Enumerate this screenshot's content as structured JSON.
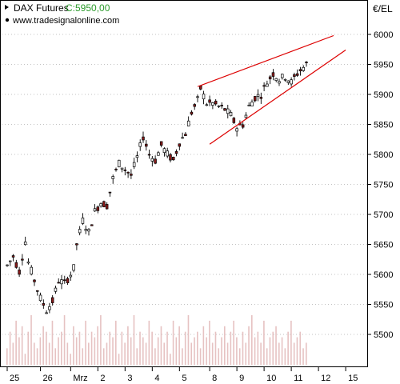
{
  "header": {
    "instrument": "DAX Futures",
    "last_label": "C:5950,00",
    "source": "www.tradesignalonline.com",
    "currency": "€/EL"
  },
  "chart_data": {
    "type": "candlestick",
    "title": "DAX Futures",
    "ylabel": "€/EL",
    "ylim": [
      5460,
      6020
    ],
    "y_ticks": [
      5500,
      5550,
      5600,
      5650,
      5700,
      5750,
      5800,
      5850,
      5900,
      5950,
      6000
    ],
    "x_tick_labels": [
      "25",
      "26",
      "Mrz",
      "2",
      "3",
      "4",
      "5",
      "8",
      "9",
      "10",
      "11",
      "12",
      "15"
    ],
    "last_price": 5950,
    "grid": true,
    "colors": {
      "up_body": "#ffffff",
      "down_body": "#8b1a1a",
      "wick": "#000000",
      "trendline": "#dd0000",
      "volume": "#e6c2c2",
      "grid": "#b0b0b0"
    },
    "price_path": [
      [
        0,
        5615
      ],
      [
        2,
        5630
      ],
      [
        4,
        5605
      ],
      [
        6,
        5655
      ],
      [
        7,
        5620
      ],
      [
        9,
        5590
      ],
      [
        11,
        5560
      ],
      [
        13,
        5540
      ],
      [
        15,
        5555
      ],
      [
        17,
        5590
      ],
      [
        19,
        5585
      ],
      [
        21,
        5600
      ],
      [
        22,
        5610
      ],
      [
        23,
        5650
      ],
      [
        25,
        5690
      ],
      [
        27,
        5670
      ],
      [
        29,
        5705
      ],
      [
        31,
        5720
      ],
      [
        33,
        5715
      ],
      [
        35,
        5760
      ],
      [
        37,
        5785
      ],
      [
        39,
        5775
      ],
      [
        41,
        5765
      ],
      [
        43,
        5795
      ],
      [
        45,
        5830
      ],
      [
        47,
        5800
      ],
      [
        49,
        5790
      ],
      [
        51,
        5815
      ],
      [
        53,
        5800
      ],
      [
        55,
        5790
      ],
      [
        57,
        5820
      ],
      [
        59,
        5835
      ],
      [
        61,
        5870
      ],
      [
        63,
        5890
      ],
      [
        64,
        5910
      ],
      [
        66,
        5885
      ],
      [
        68,
        5885
      ],
      [
        70,
        5880
      ],
      [
        72,
        5875
      ],
      [
        74,
        5865
      ],
      [
        76,
        5845
      ],
      [
        78,
        5850
      ],
      [
        80,
        5880
      ],
      [
        82,
        5895
      ],
      [
        84,
        5900
      ],
      [
        86,
        5920
      ],
      [
        88,
        5935
      ],
      [
        90,
        5925
      ],
      [
        92,
        5930
      ],
      [
        94,
        5920
      ],
      [
        96,
        5935
      ],
      [
        98,
        5945
      ],
      [
        99,
        5950
      ]
    ],
    "volume": [
      3,
      6,
      4,
      8,
      5,
      7,
      2,
      6,
      9,
      4,
      3,
      5,
      7,
      6,
      4,
      8,
      3,
      5,
      6,
      9,
      4,
      2,
      7,
      5,
      6,
      3,
      8,
      4,
      6,
      5,
      7,
      9,
      3,
      4,
      6,
      5,
      8,
      2,
      6,
      4,
      7,
      5,
      9,
      3,
      6,
      5,
      4,
      8,
      6,
      3,
      5,
      7,
      4,
      6,
      2,
      8,
      5,
      7,
      3,
      6,
      9,
      4,
      5,
      6,
      3,
      7,
      5,
      8,
      4,
      6,
      3,
      5,
      7,
      4,
      6,
      8,
      5,
      3,
      6,
      4,
      7,
      9,
      5,
      6,
      4,
      8,
      3,
      5,
      6,
      7,
      4,
      5,
      3,
      6,
      8,
      4,
      5,
      6,
      3,
      4
    ],
    "trendlines": [
      {
        "name": "upper",
        "from": [
          63,
          5913
        ],
        "to": [
          108,
          5998
        ]
      },
      {
        "name": "lower",
        "from": [
          67,
          5817
        ],
        "to": [
          112,
          5974
        ]
      }
    ]
  }
}
